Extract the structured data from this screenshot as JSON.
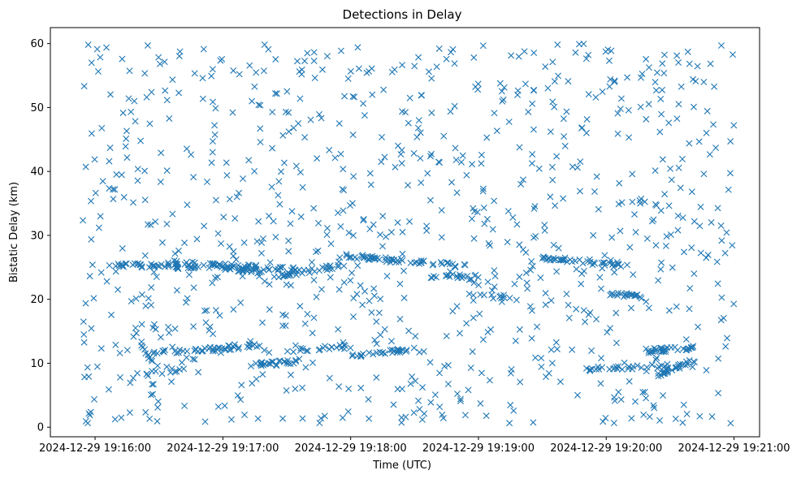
{
  "chart_data": {
    "type": "scatter",
    "title": "Detections in Delay",
    "xlabel": "Time (UTC)",
    "ylabel": "Bistatic Delay (km)",
    "xlim": [
      -0.35,
      5.2
    ],
    "ylim": [
      -1.5,
      62.5
    ],
    "x_units": "minutes since 2024-12-29 19:16:00",
    "xticks": [
      0,
      1,
      2,
      3,
      4,
      5
    ],
    "xtick_labels": [
      "2024-12-29 19:16:00",
      "2024-12-29 19:17:00",
      "2024-12-29 19:18:00",
      "2024-12-29 19:19:00",
      "2024-12-29 19:20:00",
      "2024-12-29 19:21:00"
    ],
    "yticks": [
      0,
      10,
      20,
      30,
      40,
      50,
      60
    ],
    "ytick_labels": [
      "0",
      "10",
      "20",
      "30",
      "40",
      "50",
      "60"
    ],
    "grid": false,
    "marker": "x",
    "color": "#1f77b4",
    "series": [
      {
        "name": "Detections",
        "x_range": [
          -0.1,
          5.0
        ],
        "y_range": [
          0.5,
          60
        ],
        "random_points": 900,
        "tracks": [
          {
            "x": [
              0.1,
              0.85
            ],
            "y": [
              25.4,
              25.0
            ],
            "n": 45
          },
          {
            "x": [
              0.6,
              1.6
            ],
            "y": [
              25.8,
              24.6
            ],
            "n": 60
          },
          {
            "x": [
              1.0,
              1.35
            ],
            "y": [
              24.8,
              24.3
            ],
            "n": 25
          },
          {
            "x": [
              1.4,
              2.0
            ],
            "y": [
              23.6,
              25.5
            ],
            "n": 30
          },
          {
            "x": [
              1.9,
              2.9
            ],
            "y": [
              26.9,
              25.2
            ],
            "n": 60
          },
          {
            "x": [
              2.6,
              3.0
            ],
            "y": [
              23.6,
              23.5
            ],
            "n": 20
          },
          {
            "x": [
              3.5,
              4.1
            ],
            "y": [
              26.4,
              25.6
            ],
            "n": 40
          },
          {
            "x": [
              4.0,
              4.3
            ],
            "y": [
              21.0,
              20.4
            ],
            "n": 20
          },
          {
            "x": [
              0.45,
              0.95
            ],
            "y": [
              11.7,
              12.2
            ],
            "n": 25
          },
          {
            "x": [
              0.9,
              1.3
            ],
            "y": [
              12.2,
              12.8
            ],
            "n": 25
          },
          {
            "x": [
              1.2,
              1.6
            ],
            "y": [
              9.6,
              10.4
            ],
            "n": 25
          },
          {
            "x": [
              1.5,
              2.0
            ],
            "y": [
              12.0,
              12.6
            ],
            "n": 20
          },
          {
            "x": [
              2.0,
              2.5
            ],
            "y": [
              11.2,
              12.2
            ],
            "n": 30
          },
          {
            "x": [
              3.8,
              4.5
            ],
            "y": [
              9.0,
              9.6
            ],
            "n": 30
          },
          {
            "x": [
              4.3,
              4.7
            ],
            "y": [
              11.9,
              12.5
            ],
            "n": 30
          },
          {
            "x": [
              4.4,
              4.7
            ],
            "y": [
              8.2,
              10.5
            ],
            "n": 25
          },
          {
            "x": [
              0.4,
              0.7
            ],
            "y": [
              8.3,
              9.2
            ],
            "n": 12
          },
          {
            "x": [
              0.35,
              0.45
            ],
            "y": [
              13.5,
              10.0
            ],
            "n": 10
          },
          {
            "x": [
              2.9,
              3.3
            ],
            "y": [
              20.6,
              20.2
            ],
            "n": 12
          }
        ]
      }
    ]
  }
}
